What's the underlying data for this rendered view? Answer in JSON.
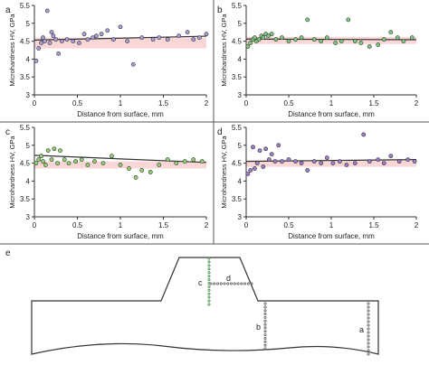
{
  "figure": {
    "panel_labels": [
      "a",
      "b",
      "c",
      "d",
      "e"
    ],
    "diagram": {
      "labels": [
        "c",
        "d",
        "b",
        "a"
      ]
    }
  },
  "chart_data": [
    {
      "panel": "a",
      "type": "scatter",
      "xlabel": "Distance from surface, mm",
      "ylabel": "Microhardness HV, GPa",
      "xlim": [
        0,
        2
      ],
      "ylim": [
        3,
        5.5
      ],
      "xticks": [
        0,
        0.5,
        1,
        1.5,
        2
      ],
      "yticks": [
        3,
        3.5,
        4,
        4.5,
        5,
        5.5
      ],
      "grid": false,
      "trend": [
        [
          0,
          4.53
        ],
        [
          2,
          4.64
        ]
      ],
      "band": {
        "upper": 4.6,
        "lower": 4.3,
        "color": "#f4b6b6"
      },
      "points": {
        "color": "#a99bd8",
        "x": [
          0.02,
          0.05,
          0.08,
          0.1,
          0.12,
          0.15,
          0.18,
          0.2,
          0.22,
          0.25,
          0.28,
          0.32,
          0.38,
          0.45,
          0.52,
          0.58,
          0.62,
          0.68,
          0.72,
          0.78,
          0.85,
          0.92,
          1.0,
          1.08,
          1.15,
          1.25,
          1.38,
          1.45,
          1.55,
          1.68,
          1.78,
          1.85,
          1.92,
          2.0
        ],
        "y": [
          3.95,
          4.3,
          4.45,
          4.6,
          4.5,
          5.35,
          4.45,
          4.75,
          4.65,
          4.55,
          4.15,
          4.5,
          4.55,
          4.5,
          4.45,
          4.7,
          4.55,
          4.6,
          4.65,
          4.7,
          4.8,
          4.55,
          4.9,
          4.5,
          3.85,
          4.6,
          4.55,
          4.6,
          4.55,
          4.65,
          4.75,
          4.55,
          4.6,
          4.7
        ]
      }
    },
    {
      "panel": "b",
      "type": "scatter",
      "xlabel": "Distance from surface, mm",
      "ylabel": "Microhardness HV, GPa",
      "xlim": [
        0,
        2
      ],
      "ylim": [
        3,
        5.5
      ],
      "xticks": [
        0,
        0.5,
        1,
        1.5,
        2
      ],
      "yticks": [
        3,
        3.5,
        4,
        4.5,
        5,
        5.5
      ],
      "grid": false,
      "trend": [
        [
          0,
          4.56
        ],
        [
          2,
          4.54
        ]
      ],
      "band": {
        "upper": 4.62,
        "lower": 4.42,
        "color": "#f4b6b6"
      },
      "points": {
        "color": "#7dc97d",
        "x": [
          0.02,
          0.05,
          0.08,
          0.1,
          0.12,
          0.15,
          0.18,
          0.2,
          0.23,
          0.26,
          0.3,
          0.35,
          0.42,
          0.5,
          0.58,
          0.65,
          0.72,
          0.8,
          0.88,
          0.95,
          1.05,
          1.12,
          1.2,
          1.28,
          1.35,
          1.45,
          1.55,
          1.62,
          1.7,
          1.78,
          1.85,
          1.95
        ],
        "y": [
          4.35,
          4.45,
          4.55,
          4.6,
          4.5,
          4.55,
          4.65,
          4.6,
          4.7,
          4.65,
          4.7,
          4.55,
          4.6,
          4.5,
          4.55,
          4.6,
          5.1,
          4.55,
          4.5,
          4.6,
          4.45,
          4.5,
          5.1,
          4.5,
          4.45,
          4.35,
          4.4,
          4.55,
          4.75,
          4.6,
          4.5,
          4.6
        ]
      }
    },
    {
      "panel": "c",
      "type": "scatter",
      "xlabel": "Distance from surface, mm",
      "ylabel": "Microhardness HV, GPa",
      "xlim": [
        0,
        2
      ],
      "ylim": [
        3,
        5.5
      ],
      "xticks": [
        0,
        0.5,
        1,
        1.5,
        2
      ],
      "yticks": [
        3,
        3.5,
        4,
        4.5,
        5,
        5.5
      ],
      "grid": false,
      "trend": [
        [
          0,
          4.72
        ],
        [
          2,
          4.52
        ]
      ],
      "band": {
        "upper": 4.55,
        "lower": 4.35,
        "color": "#f4b6b6"
      },
      "points": {
        "color": "#8fd06f",
        "x": [
          0.02,
          0.05,
          0.08,
          0.1,
          0.13,
          0.16,
          0.2,
          0.23,
          0.27,
          0.3,
          0.35,
          0.4,
          0.48,
          0.55,
          0.62,
          0.7,
          0.8,
          0.9,
          1.0,
          1.1,
          1.18,
          1.25,
          1.35,
          1.45,
          1.55,
          1.65,
          1.75,
          1.85,
          1.95
        ],
        "y": [
          4.5,
          4.6,
          4.7,
          4.55,
          4.45,
          4.85,
          4.6,
          4.9,
          4.5,
          4.85,
          4.6,
          4.5,
          4.55,
          4.6,
          4.45,
          4.55,
          4.5,
          4.7,
          4.45,
          4.35,
          4.1,
          4.3,
          4.25,
          4.45,
          4.6,
          4.5,
          4.55,
          4.6,
          4.55
        ]
      }
    },
    {
      "panel": "d",
      "type": "scatter",
      "xlabel": "Distance from surface, mm",
      "ylabel": "Microhardness HV, GPa",
      "xlim": [
        0,
        2
      ],
      "ylim": [
        3,
        5.5
      ],
      "xticks": [
        0,
        0.5,
        1,
        1.5,
        2
      ],
      "yticks": [
        3,
        3.5,
        4,
        4.5,
        5,
        5.5
      ],
      "grid": false,
      "trend": [
        [
          0,
          4.55
        ],
        [
          2,
          4.6
        ]
      ],
      "band": {
        "upper": 4.58,
        "lower": 4.4,
        "color": "#f4b6b6"
      },
      "points": {
        "color": "#9b7cc8",
        "x": [
          0.02,
          0.05,
          0.08,
          0.1,
          0.13,
          0.16,
          0.2,
          0.23,
          0.27,
          0.3,
          0.34,
          0.38,
          0.42,
          0.5,
          0.58,
          0.65,
          0.72,
          0.8,
          0.88,
          0.95,
          1.02,
          1.1,
          1.18,
          1.28,
          1.38,
          1.45,
          1.55,
          1.62,
          1.7,
          1.8,
          1.9,
          1.98
        ],
        "y": [
          4.2,
          4.3,
          4.95,
          4.35,
          4.5,
          4.85,
          4.4,
          4.9,
          4.6,
          4.75,
          4.55,
          5.0,
          4.55,
          4.6,
          4.55,
          4.5,
          4.3,
          4.55,
          4.5,
          4.65,
          4.5,
          4.55,
          4.45,
          4.5,
          5.3,
          4.55,
          4.6,
          4.5,
          4.7,
          4.55,
          4.6,
          4.55
        ]
      }
    }
  ]
}
